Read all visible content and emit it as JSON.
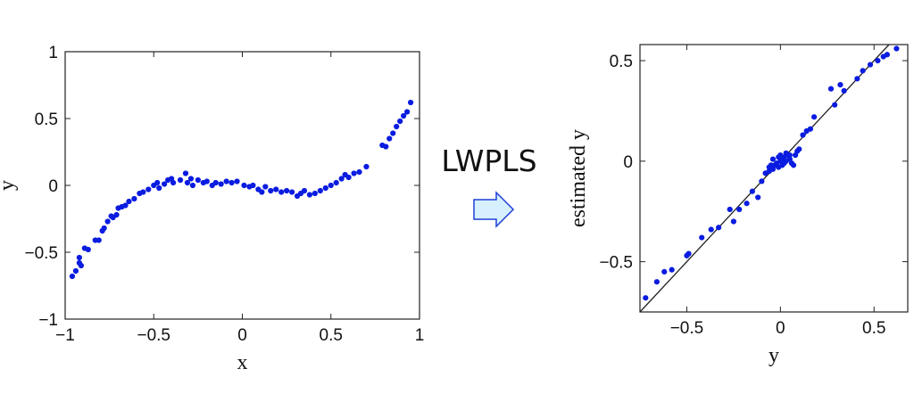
{
  "middle": {
    "label": "LWPLS",
    "arrow_fill": "#d6f0ff",
    "arrow_stroke": "#1f3fd6"
  },
  "point_color": "#0a1ce0",
  "chart_data": [
    {
      "type": "scatter",
      "xlabel": "x",
      "ylabel": "y",
      "xlim": [
        -1,
        1
      ],
      "ylim": [
        -1,
        1
      ],
      "xticks": [
        -1,
        -0.5,
        0,
        0.5,
        1
      ],
      "yticks": [
        -1,
        -0.5,
        0,
        0.5,
        1
      ],
      "xtick_labels": [
        "−1",
        "−0.5",
        "0",
        "0.5",
        "1"
      ],
      "ytick_labels": [
        "−1",
        "−0.5",
        "0",
        "0.5",
        "1"
      ],
      "grid": false,
      "reference_line": null,
      "points": [
        [
          -0.96,
          -0.68
        ],
        [
          -0.94,
          -0.64
        ],
        [
          -0.92,
          -0.58
        ],
        [
          -0.92,
          -0.54
        ],
        [
          -0.91,
          -0.6
        ],
        [
          -0.89,
          -0.47
        ],
        [
          -0.87,
          -0.48
        ],
        [
          -0.83,
          -0.41
        ],
        [
          -0.81,
          -0.41
        ],
        [
          -0.79,
          -0.34
        ],
        [
          -0.78,
          -0.32
        ],
        [
          -0.76,
          -0.27
        ],
        [
          -0.74,
          -0.23
        ],
        [
          -0.73,
          -0.24
        ],
        [
          -0.71,
          -0.22
        ],
        [
          -0.7,
          -0.17
        ],
        [
          -0.68,
          -0.16
        ],
        [
          -0.66,
          -0.15
        ],
        [
          -0.64,
          -0.12
        ],
        [
          -0.61,
          -0.1
        ],
        [
          -0.58,
          -0.06
        ],
        [
          -0.56,
          -0.05
        ],
        [
          -0.53,
          -0.03
        ],
        [
          -0.5,
          0.0
        ],
        [
          -0.48,
          0.02
        ],
        [
          -0.47,
          -0.02
        ],
        [
          -0.44,
          0.01
        ],
        [
          -0.42,
          0.04
        ],
        [
          -0.4,
          0.05
        ],
        [
          -0.39,
          0.02
        ],
        [
          -0.35,
          0.04
        ],
        [
          -0.32,
          0.09
        ],
        [
          -0.31,
          0.02
        ],
        [
          -0.29,
          0.05
        ],
        [
          -0.28,
          0.0
        ],
        [
          -0.25,
          0.04
        ],
        [
          -0.22,
          0.02
        ],
        [
          -0.2,
          0.03
        ],
        [
          -0.17,
          0.0
        ],
        [
          -0.15,
          0.02
        ],
        [
          -0.12,
          0.01
        ],
        [
          -0.09,
          0.03
        ],
        [
          -0.06,
          0.02
        ],
        [
          -0.03,
          0.03
        ],
        [
          0.01,
          0.0
        ],
        [
          0.04,
          -0.01
        ],
        [
          0.06,
          0.0
        ],
        [
          0.09,
          -0.03
        ],
        [
          0.11,
          -0.05
        ],
        [
          0.13,
          -0.01
        ],
        [
          0.16,
          -0.04
        ],
        [
          0.19,
          -0.03
        ],
        [
          0.22,
          -0.05
        ],
        [
          0.25,
          -0.04
        ],
        [
          0.28,
          -0.05
        ],
        [
          0.31,
          -0.08
        ],
        [
          0.33,
          -0.06
        ],
        [
          0.35,
          -0.04
        ],
        [
          0.38,
          -0.07
        ],
        [
          0.41,
          -0.06
        ],
        [
          0.44,
          -0.04
        ],
        [
          0.47,
          -0.02
        ],
        [
          0.5,
          0.0
        ],
        [
          0.53,
          0.02
        ],
        [
          0.56,
          0.05
        ],
        [
          0.58,
          0.08
        ],
        [
          0.6,
          0.06
        ],
        [
          0.63,
          0.09
        ],
        [
          0.66,
          0.1
        ],
        [
          0.7,
          0.14
        ],
        [
          0.79,
          0.3
        ],
        [
          0.81,
          0.29
        ],
        [
          0.83,
          0.35
        ],
        [
          0.85,
          0.39
        ],
        [
          0.87,
          0.44
        ],
        [
          0.89,
          0.48
        ],
        [
          0.91,
          0.52
        ],
        [
          0.93,
          0.55
        ],
        [
          0.95,
          0.62
        ]
      ]
    },
    {
      "type": "scatter",
      "xlabel": "y",
      "ylabel": "estimated y",
      "xlim": [
        -0.75,
        0.68
      ],
      "ylim": [
        -0.75,
        0.58
      ],
      "xticks": [
        -0.5,
        0,
        0.5
      ],
      "yticks": [
        -0.5,
        0,
        0.5
      ],
      "xtick_labels": [
        "−0.5",
        "0",
        "0.5"
      ],
      "ytick_labels": [
        "−0.5",
        "0",
        "0.5"
      ],
      "grid": false,
      "reference_line": "y = x",
      "points": [
        [
          -0.72,
          -0.68
        ],
        [
          -0.66,
          -0.6
        ],
        [
          -0.62,
          -0.55
        ],
        [
          -0.58,
          -0.54
        ],
        [
          -0.5,
          -0.47
        ],
        [
          -0.49,
          -0.46
        ],
        [
          -0.42,
          -0.38
        ],
        [
          -0.37,
          -0.34
        ],
        [
          -0.33,
          -0.33
        ],
        [
          -0.27,
          -0.24
        ],
        [
          -0.25,
          -0.3
        ],
        [
          -0.22,
          -0.24
        ],
        [
          -0.18,
          -0.21
        ],
        [
          -0.15,
          -0.15
        ],
        [
          -0.12,
          -0.18
        ],
        [
          -0.1,
          -0.1
        ],
        [
          -0.08,
          -0.06
        ],
        [
          -0.06,
          -0.05
        ],
        [
          -0.05,
          -0.02
        ],
        [
          -0.04,
          -0.04
        ],
        [
          -0.03,
          -0.02
        ],
        [
          -0.02,
          -0.01
        ],
        [
          -0.01,
          -0.03
        ],
        [
          0.0,
          0.0
        ],
        [
          0.01,
          0.01
        ],
        [
          0.01,
          -0.02
        ],
        [
          0.02,
          0.02
        ],
        [
          0.03,
          0.0
        ],
        [
          0.04,
          0.03
        ],
        [
          0.05,
          0.01
        ],
        [
          0.06,
          -0.01
        ],
        [
          0.07,
          -0.02
        ],
        [
          0.08,
          0.03
        ],
        [
          0.09,
          0.05
        ],
        [
          0.1,
          0.06
        ],
        [
          0.12,
          0.13
        ],
        [
          0.14,
          0.15
        ],
        [
          0.16,
          0.16
        ],
        [
          0.18,
          0.22
        ],
        [
          0.27,
          0.36
        ],
        [
          0.29,
          0.28
        ],
        [
          0.32,
          0.38
        ],
        [
          0.34,
          0.35
        ],
        [
          0.41,
          0.41
        ],
        [
          0.44,
          0.45
        ],
        [
          0.48,
          0.48
        ],
        [
          0.52,
          0.5
        ],
        [
          0.55,
          0.52
        ],
        [
          0.57,
          0.53
        ],
        [
          0.62,
          0.56
        ],
        [
          -0.04,
          0.01
        ],
        [
          0.0,
          0.03
        ],
        [
          0.03,
          0.04
        ],
        [
          -0.01,
          0.02
        ],
        [
          0.05,
          0.03
        ],
        [
          0.02,
          -0.01
        ],
        [
          -0.06,
          -0.03
        ]
      ]
    }
  ]
}
